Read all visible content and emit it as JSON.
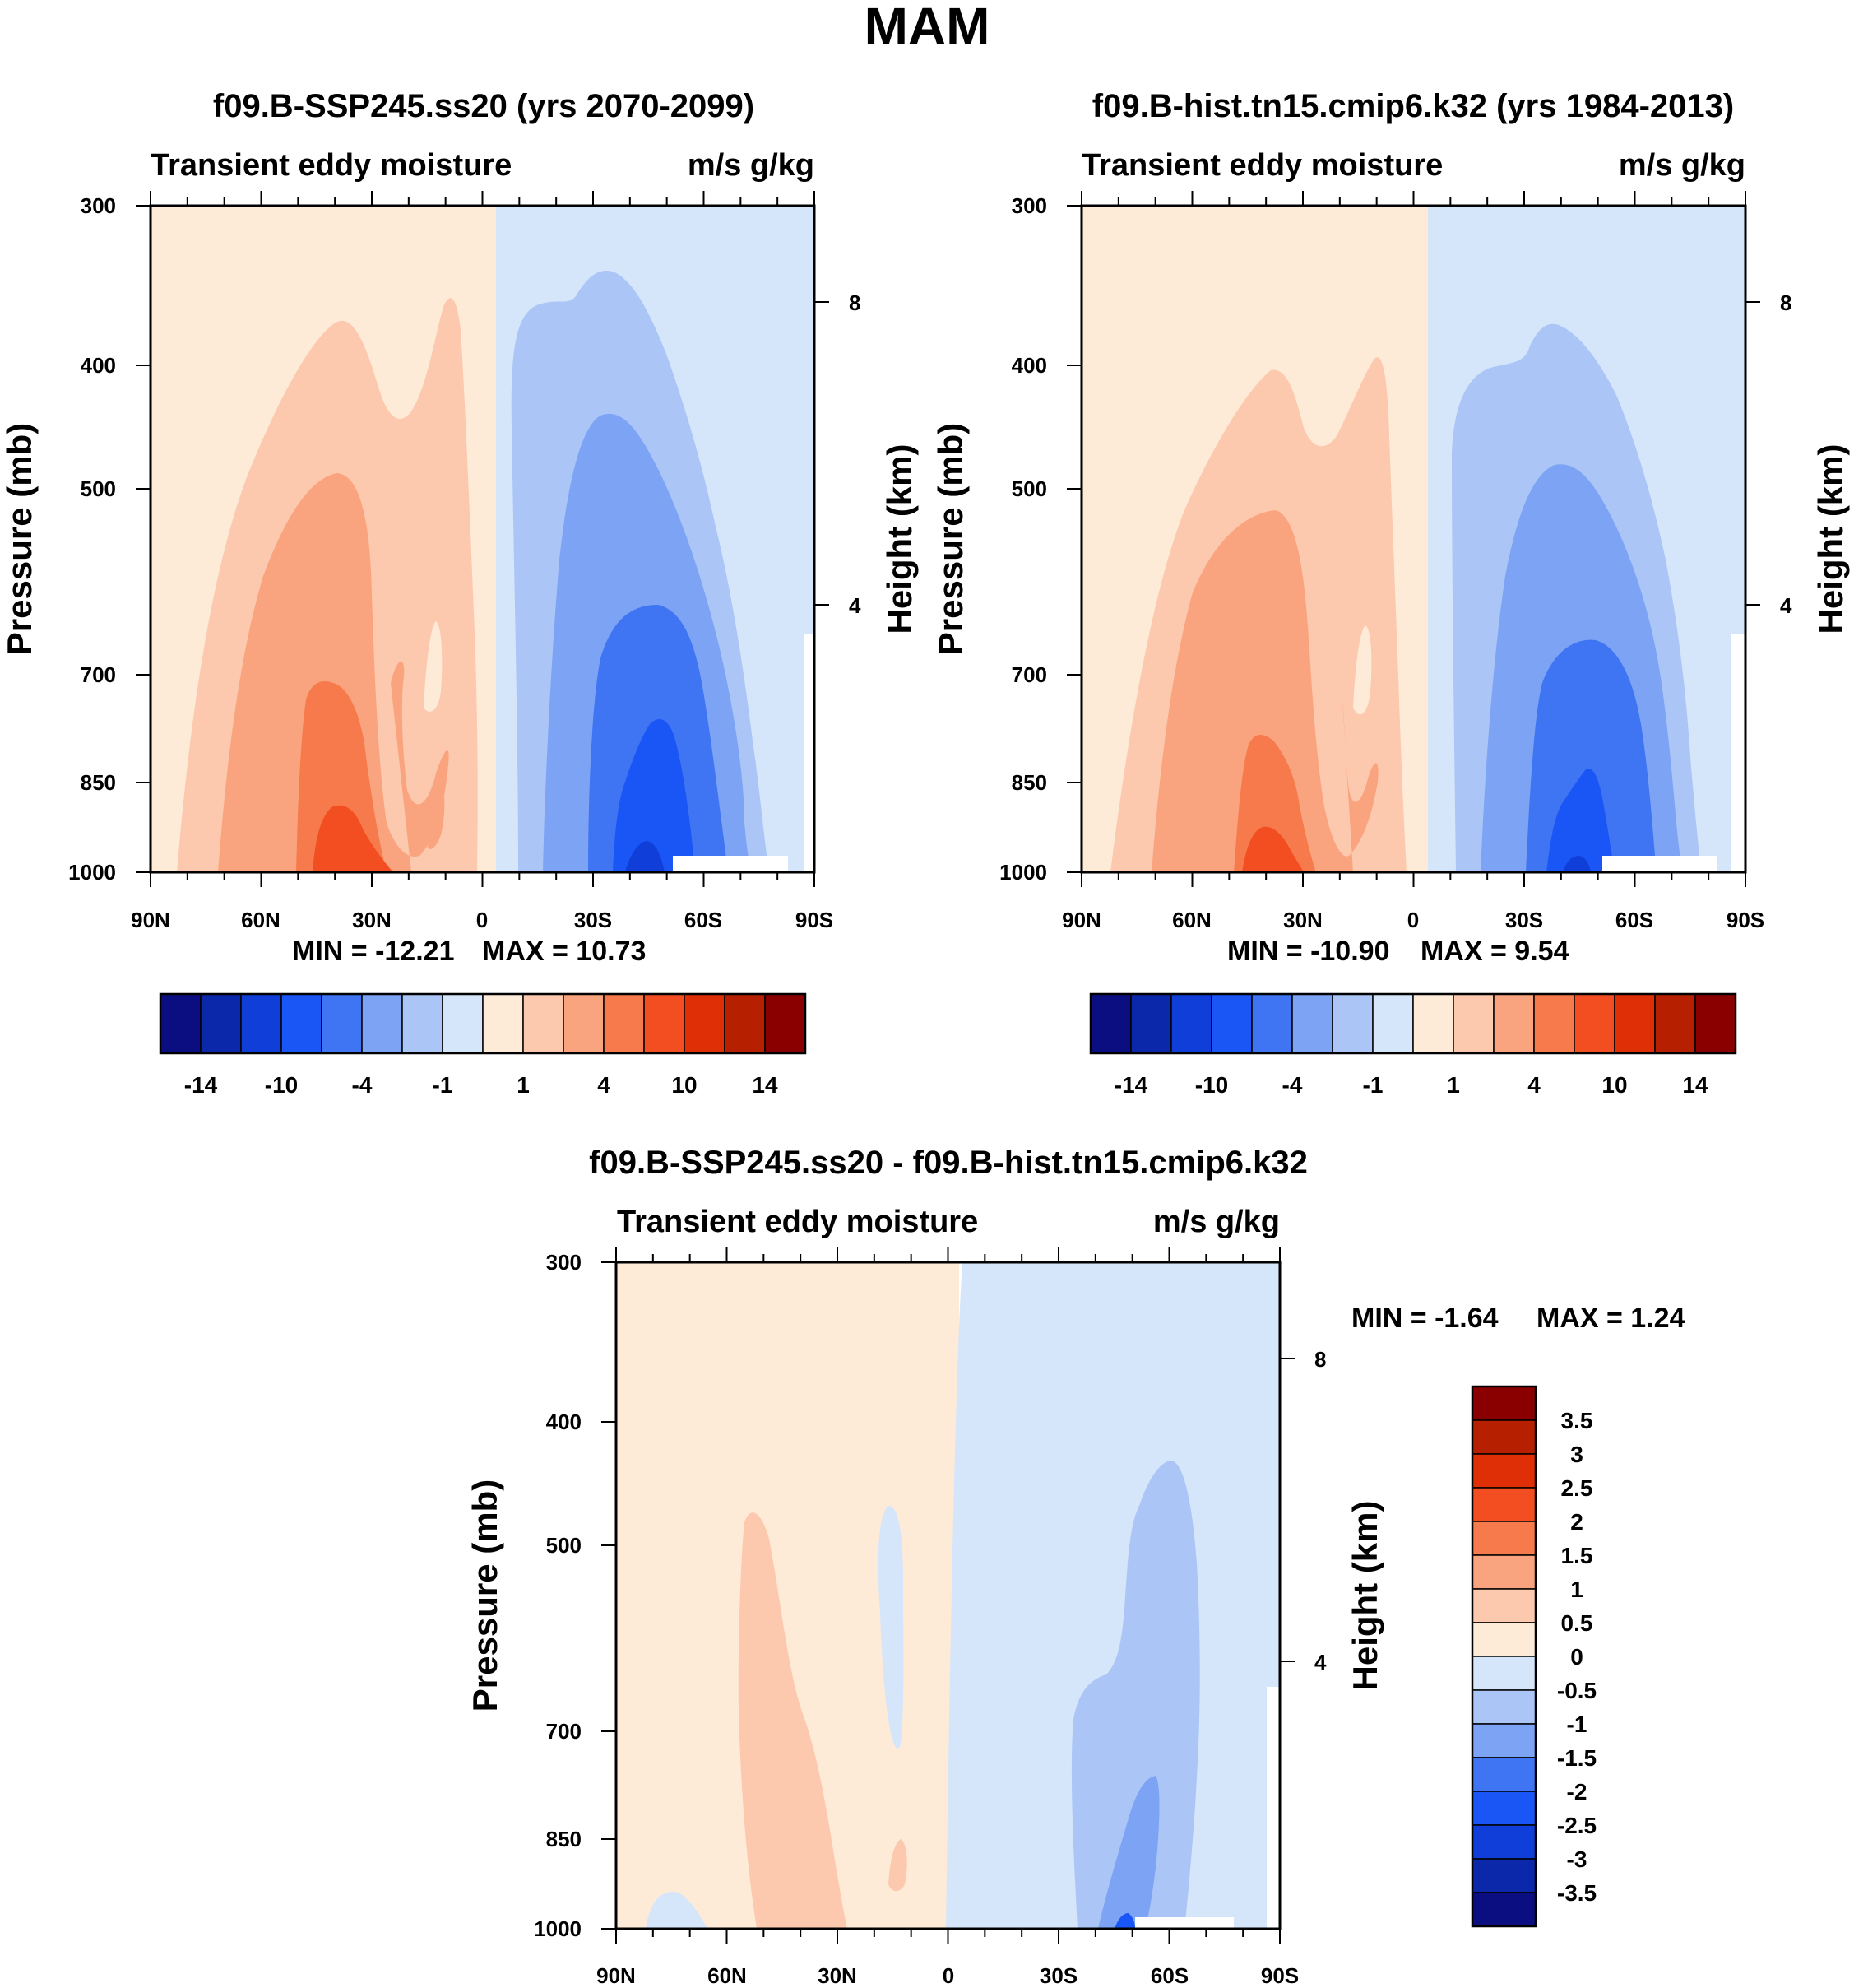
{
  "figure": {
    "title": "MAM"
  },
  "colors": {
    "scale": [
      "#0a0e80",
      "#0b28aa",
      "#0f3fd8",
      "#1a55f5",
      "#3f74f2",
      "#7da3f4",
      "#abc6f6",
      "#d5e6fb",
      "#fdebd8",
      "#fcc9ae",
      "#f9a47e",
      "#f67a4b",
      "#f24e22",
      "#df2f07",
      "#b62000",
      "#8a0000"
    ]
  },
  "chart_data": [
    {
      "type": "heatmap",
      "id": "ssp",
      "title": "f09.B-SSP245.ss20 (yrs 2070-2099)",
      "subtitle_left": "Transient eddy moisture",
      "subtitle_right": "m/s g/kg",
      "ylabel": "Pressure (mb)",
      "y2label": "Height (km)",
      "x_ticks": [
        "90N",
        "60N",
        "30N",
        "0",
        "30S",
        "60S",
        "90S"
      ],
      "x_values": [
        90,
        60,
        30,
        0,
        -30,
        -60,
        -90
      ],
      "y_ticks": [
        "300",
        "400",
        "500",
        "700",
        "850",
        "1000"
      ],
      "y_values": [
        300,
        400,
        500,
        700,
        850,
        1000
      ],
      "y2_ticks": [
        "8",
        "4"
      ],
      "y2_values": [
        8,
        4
      ],
      "ylim": [
        1000,
        300
      ],
      "xlim": [
        90,
        -90
      ],
      "min_label": "MIN = -12.21",
      "max_label": "MAX =  10.73",
      "min": -12.21,
      "max": 10.73,
      "colorbar": {
        "orientation": "horizontal",
        "labels": [
          "-14",
          "-10",
          "-4",
          "-1",
          "1",
          "4",
          "10",
          "14"
        ]
      },
      "description_fields": [
        {
          "sign": "positive",
          "center_lat": 38,
          "peak_pressure": 950,
          "peak": 10.73
        },
        {
          "sign": "negative",
          "center_lat": -48,
          "peak_pressure": 960,
          "peak": -12.21
        }
      ]
    },
    {
      "type": "heatmap",
      "id": "hist",
      "title": "f09.B-hist.tn15.cmip6.k32 (yrs 1984-2013)",
      "subtitle_left": "Transient eddy moisture",
      "subtitle_right": "m/s g/kg",
      "ylabel": "Pressure (mb)",
      "y2label": "Height (km)",
      "x_ticks": [
        "90N",
        "60N",
        "30N",
        "0",
        "30S",
        "60S",
        "90S"
      ],
      "x_values": [
        90,
        60,
        30,
        0,
        -30,
        -60,
        -90
      ],
      "y_ticks": [
        "300",
        "400",
        "500",
        "700",
        "850",
        "1000"
      ],
      "y_values": [
        300,
        400,
        500,
        700,
        850,
        1000
      ],
      "y2_ticks": [
        "8",
        "4"
      ],
      "y2_values": [
        8,
        4
      ],
      "ylim": [
        1000,
        300
      ],
      "xlim": [
        90,
        -90
      ],
      "min_label": "MIN = -10.90",
      "max_label": "MAX =    9.54",
      "min": -10.9,
      "max": 9.54,
      "colorbar": {
        "orientation": "horizontal",
        "labels": [
          "-14",
          "-10",
          "-4",
          "-1",
          "1",
          "4",
          "10",
          "14"
        ]
      }
    },
    {
      "type": "heatmap",
      "id": "diff",
      "title": "f09.B-SSP245.ss20 - f09.B-hist.tn15.cmip6.k32",
      "subtitle_left": "Transient eddy moisture",
      "subtitle_right": "m/s g/kg",
      "ylabel": "Pressure (mb)",
      "y2label": "Height (km)",
      "x_ticks": [
        "90N",
        "60N",
        "30N",
        "0",
        "30S",
        "60S",
        "90S"
      ],
      "x_values": [
        90,
        60,
        30,
        0,
        -30,
        -60,
        -90
      ],
      "y_ticks": [
        "300",
        "400",
        "500",
        "700",
        "850",
        "1000"
      ],
      "y_values": [
        300,
        400,
        500,
        700,
        850,
        1000
      ],
      "y2_ticks": [
        "8",
        "4"
      ],
      "y2_values": [
        8,
        4
      ],
      "ylim": [
        1000,
        300
      ],
      "xlim": [
        90,
        -90
      ],
      "min_label": "MIN =  -1.64",
      "max_label": "MAX =    1.24",
      "min": -1.64,
      "max": 1.24,
      "colorbar": {
        "orientation": "vertical",
        "labels": [
          "3.5",
          "3",
          "2.5",
          "2",
          "1.5",
          "1",
          "0.5",
          "0",
          "-0.5",
          "-1",
          "-1.5",
          "-2",
          "-2.5",
          "-3",
          "-3.5"
        ]
      }
    }
  ]
}
